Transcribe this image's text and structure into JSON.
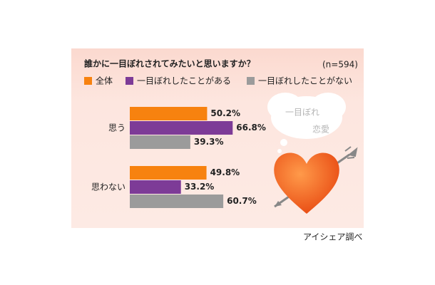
{
  "chart_data": {
    "type": "hbar",
    "title": "誰かに一目ぼれされてみたいと思いますか？",
    "subtitle": "(n=594)",
    "categories": [
      "思う",
      "思わない"
    ],
    "series": [
      {
        "name": "全体",
        "color": "#f7820f",
        "values": [
          50.2,
          49.8
        ],
        "value_labels": [
          "50.2%",
          "49.8%"
        ]
      },
      {
        "name": "一目ぼれしたことがある",
        "color": "#7d3b97",
        "values": [
          66.8,
          33.2
        ],
        "value_labels": [
          "66.8%",
          "33.2%"
        ]
      },
      {
        "name": "一目ぼれしたことがない",
        "color": "#9b9b9b",
        "values": [
          39.3,
          60.7
        ],
        "value_labels": [
          "39.3%",
          "60.7%"
        ]
      }
    ],
    "xlim": [
      0,
      100
    ],
    "annotations": [
      "一目ぼれ",
      "恋愛"
    ],
    "source": "アイシェア調べ"
  }
}
